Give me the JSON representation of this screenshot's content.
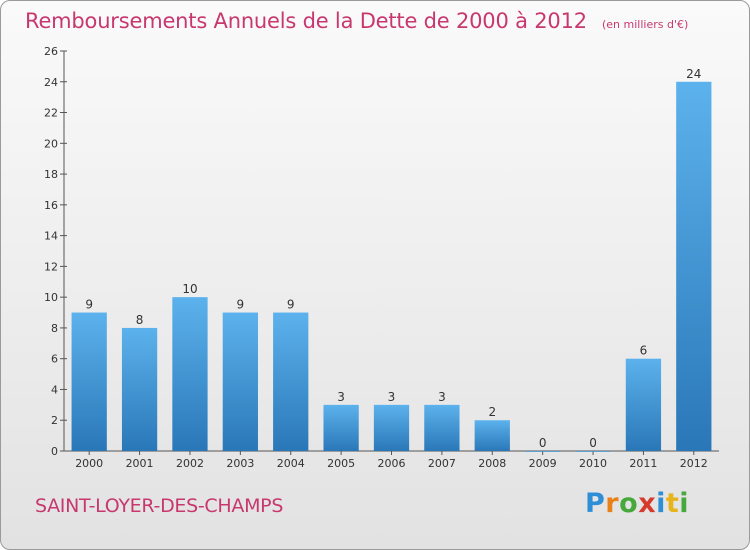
{
  "header": {
    "title": "Remboursements Annuels de la Dette de 2000 à 2012",
    "unit_note": "(en milliers d'€)"
  },
  "footer": {
    "place": "SAINT-LOYER-DES-CHAMPS",
    "logo": "Proxiti"
  },
  "chart_data": {
    "type": "bar",
    "title": "Remboursements Annuels de la Dette de 2000 à 2012",
    "subtitle": "(en milliers d'€)",
    "categories": [
      "2000",
      "2001",
      "2002",
      "2003",
      "2004",
      "2005",
      "2006",
      "2007",
      "2008",
      "2009",
      "2010",
      "2011",
      "2012"
    ],
    "values": [
      9,
      8,
      10,
      9,
      9,
      3,
      3,
      3,
      2,
      0,
      0,
      6,
      24
    ],
    "ylim": [
      0,
      26
    ],
    "yticks": [
      0,
      2,
      4,
      6,
      8,
      10,
      12,
      14,
      16,
      18,
      20,
      22,
      24,
      26
    ],
    "xlabel": "",
    "ylabel": "",
    "grid": false,
    "bar_color": "#3a8fd4",
    "bar_color_light": "#5cb2ec",
    "bar_color_dark": "#2a77b8"
  }
}
